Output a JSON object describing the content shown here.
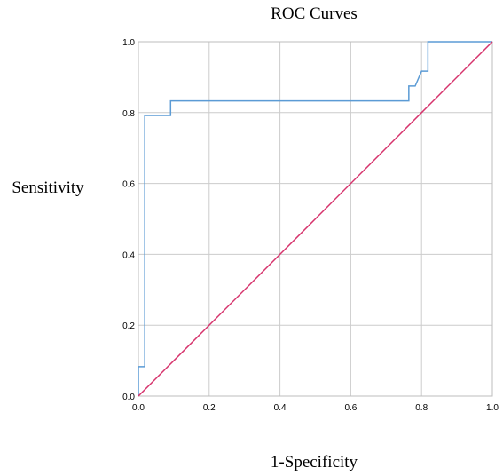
{
  "chart_data": {
    "type": "line",
    "title": "ROC Curves",
    "xlabel": "1-Specificity",
    "ylabel": "Sensitivity",
    "xlim": [
      0.0,
      1.0
    ],
    "ylim": [
      0.0,
      1.0
    ],
    "x_ticks": [
      "0.0",
      "0.2",
      "0.4",
      "0.6",
      "0.8",
      "1.0"
    ],
    "y_ticks": [
      "0.0",
      "0.2",
      "0.4",
      "0.6",
      "0.8",
      "1.0"
    ],
    "grid": true,
    "legend": "none",
    "series": [
      {
        "color": "#5b9bd5",
        "points": [
          [
            0.0,
            0.0
          ],
          [
            0.0,
            0.083
          ],
          [
            0.018,
            0.083
          ],
          [
            0.018,
            0.792
          ],
          [
            0.091,
            0.792
          ],
          [
            0.091,
            0.833
          ],
          [
            0.764,
            0.833
          ],
          [
            0.764,
            0.875
          ],
          [
            0.782,
            0.875
          ],
          [
            0.8,
            0.917
          ],
          [
            0.818,
            0.917
          ],
          [
            0.818,
            1.0
          ],
          [
            1.0,
            1.0
          ]
        ]
      },
      {
        "color": "#d6336c",
        "points": [
          [
            0.0,
            0.0
          ],
          [
            1.0,
            1.0
          ]
        ]
      }
    ]
  }
}
